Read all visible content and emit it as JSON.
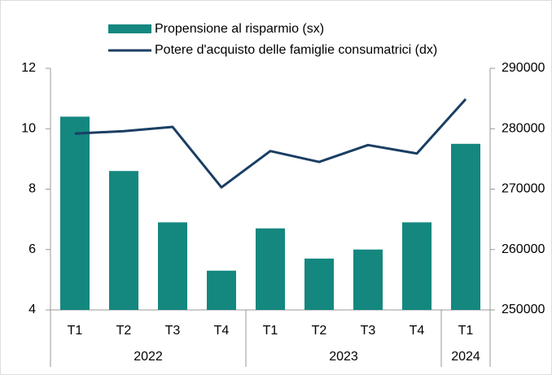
{
  "chart_data": {
    "type": "bar_line",
    "categories": [
      "T1",
      "T2",
      "T3",
      "T4",
      "T1",
      "T2",
      "T3",
      "T4",
      "T1"
    ],
    "category_groups": [
      "2022",
      "2022",
      "2022",
      "2022",
      "2023",
      "2023",
      "2023",
      "2023",
      "2024"
    ],
    "series": [
      {
        "name": "Propensione al risparmio (sx)",
        "type": "bar",
        "color": "#14877f",
        "axis": "y",
        "values": [
          10.4,
          8.6,
          6.9,
          5.3,
          6.7,
          5.7,
          6.0,
          6.9,
          9.5
        ]
      },
      {
        "name": "Potere d'acquisto delle famiglie consumatrici (dx)",
        "type": "line",
        "color": "#1b3e63",
        "axis": "y2",
        "values": [
          279200,
          279600,
          280300,
          270300,
          276300,
          274500,
          277300,
          275900,
          284900
        ]
      }
    ],
    "ylim": [
      4,
      12
    ],
    "yticks": [
      4,
      6,
      8,
      10,
      12
    ],
    "y2lim": [
      250000,
      290000
    ],
    "y2ticks": [
      250000,
      260000,
      270000,
      280000,
      290000
    ]
  }
}
